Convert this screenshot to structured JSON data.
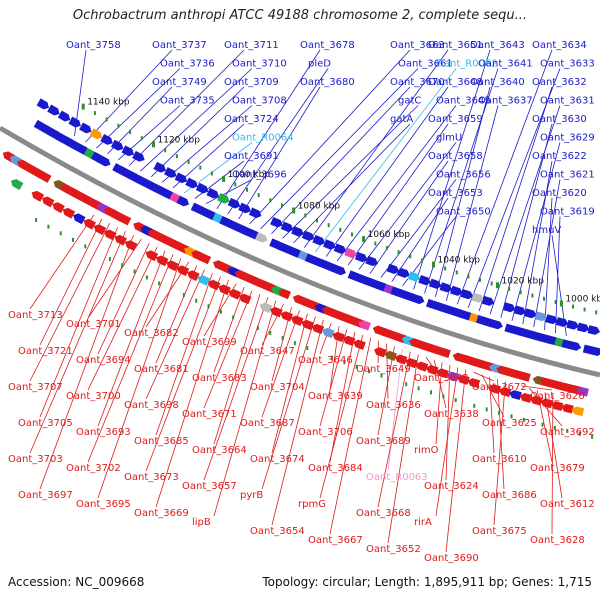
{
  "title": "Ochrobactrum anthropi ATCC 49188 chromosome 2, complete sequ...",
  "accession": "Accession: NC_009668",
  "summary": "Topology: circular; Length: 1,895,911 bp; Genes: 1,715",
  "colors": {
    "forward": "#1a1acc",
    "reverse": "#e01a1a",
    "rna": "#33bbee",
    "rna_rev": "#ee99cc",
    "backbone": "#8a8a8a",
    "tick": "#2f8f2f"
  },
  "ticks": [
    "1140 kbp",
    "1120 kbp",
    "1100 kbp",
    "1080 kbp",
    "1060 kbp",
    "1040 kbp",
    "1020 kbp",
    "1000 kbp"
  ],
  "top_labels": [
    "Oant_3758",
    "Oant_3737",
    "Oant_3736",
    "Oant_3749",
    "Oant_3735",
    "Oant_3711",
    "Oant_3710",
    "Oant_3709",
    "Oant_3708",
    "Oant_3724",
    "Oant_R0064",
    "Oant_3691",
    "Oant_3696",
    "Oant_3678",
    "pleD",
    "Oant_3680",
    "Oant_3663",
    "Oant_3661",
    "Oant_3670",
    "gatC",
    "gatA",
    "Oant_3651",
    "Oant_R0062",
    "Oant_3648",
    "Oant_3645",
    "Oant_3659",
    "glmU",
    "Oant_3658",
    "Oant_3656",
    "Oant_3653",
    "Oant_3650",
    "Oant_3643",
    "Oant_3641",
    "Oant_3640",
    "Oant_3637",
    "Oant_3634",
    "Oant_3633",
    "Oant_3632",
    "Oant_3631",
    "Oant_3630",
    "Oant_3629",
    "Oant_3622",
    "Oant_3621",
    "Oant_3620",
    "Oant_3619",
    "hmuV"
  ],
  "bottom_labels": [
    "Oant_3713",
    "Oant_3721",
    "Oant_3707",
    "Oant_3705",
    "Oant_3703",
    "Oant_3697",
    "Oant_3701",
    "Oant_3694",
    "Oant_3700",
    "Oant_3693",
    "Oant_3702",
    "Oant_3695",
    "Oant_3682",
    "Oant_3681",
    "Oant_3698",
    "Oant_3685",
    "Oant_3673",
    "Oant_3669",
    "Oant_3699",
    "Oant_3683",
    "Oant_3671",
    "Oant_3664",
    "Oant_3657",
    "lipB",
    "Oant_3647",
    "Oant_3704",
    "Oant_3687",
    "Oant_3674",
    "pyrB",
    "Oant_3654",
    "Oant_3646",
    "Oant_3639",
    "Oant_3706",
    "Oant_3684",
    "rpmG",
    "Oant_3667",
    "Oant_3649",
    "Oant_3636",
    "Oant_3689",
    "Oant_R0063",
    "Oant_3668",
    "Oant_3652",
    "Oant_3642",
    "Oant_3638",
    "rimO",
    "Oant_3624",
    "rirA",
    "Oant_3690",
    "Oant_3672",
    "Oant_3625",
    "Oant_3610",
    "Oant_3686",
    "Oant_3675",
    "Oant_3611",
    "Oant_3626",
    "Oant_3692",
    "Oant_3679",
    "Oant_3612",
    "Oant_3628",
    "Oant_3614"
  ]
}
